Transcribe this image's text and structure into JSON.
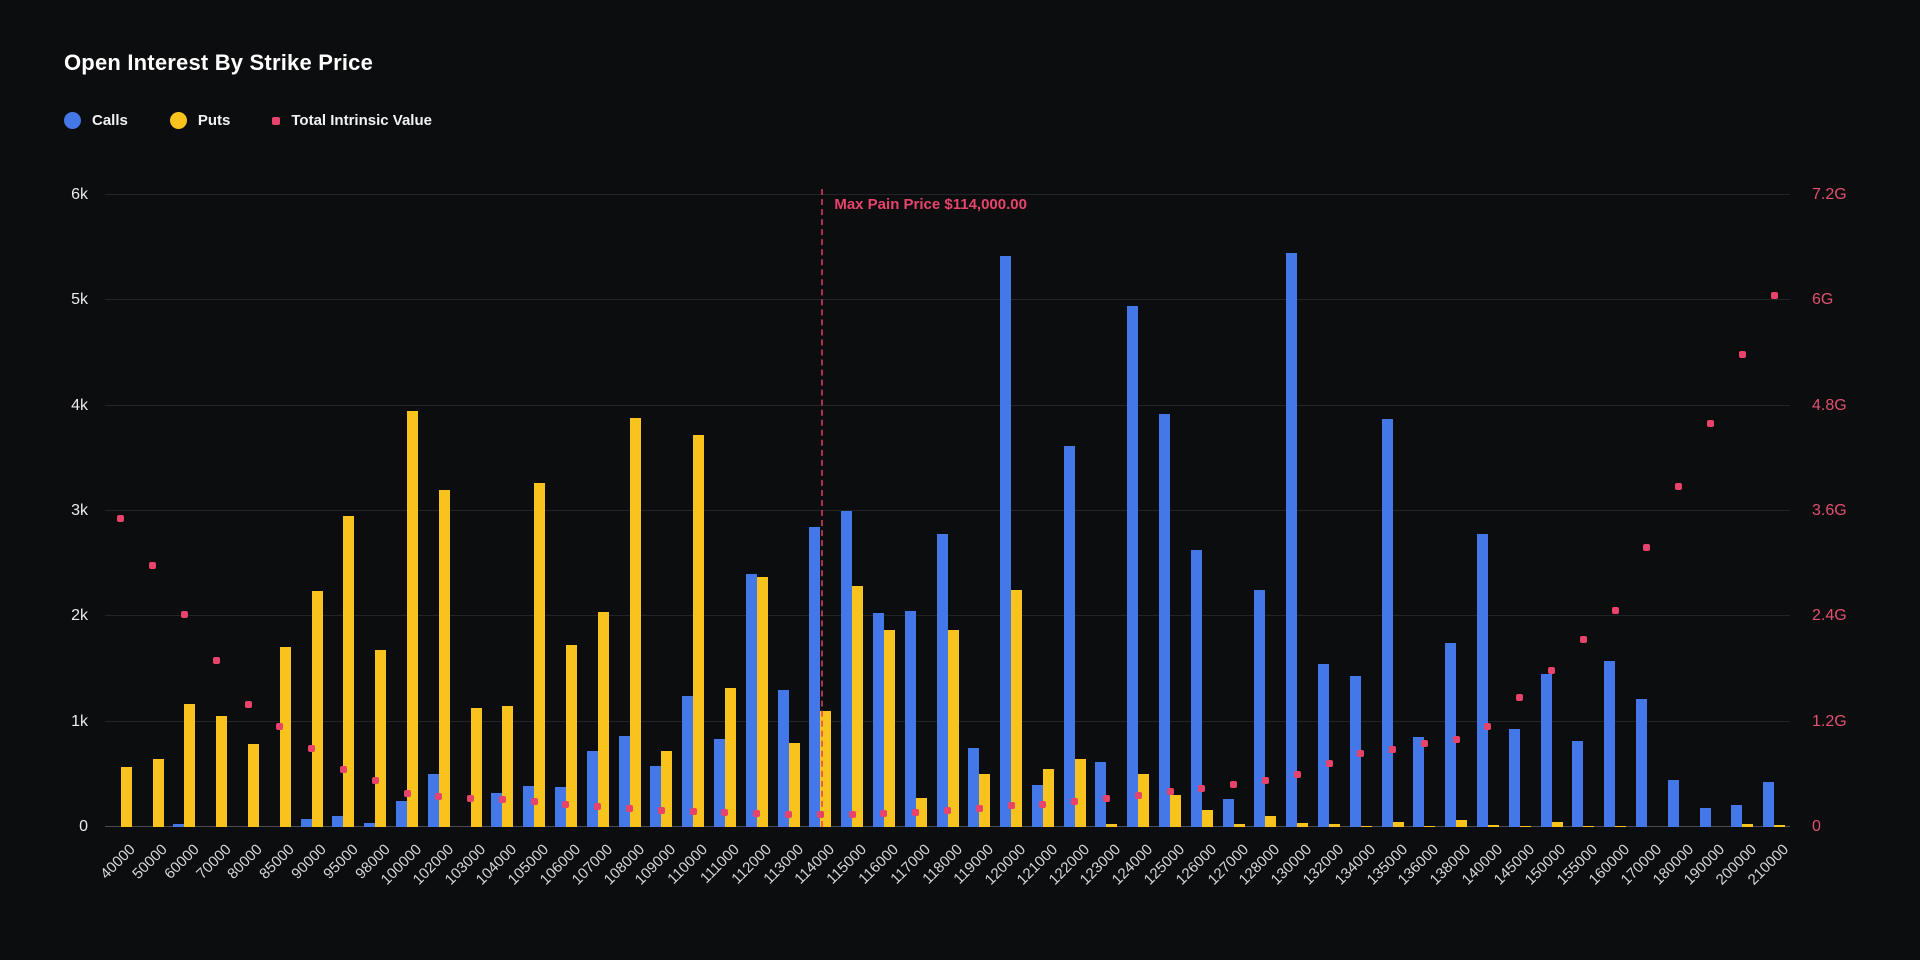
{
  "title": "Open Interest By Strike Price",
  "legend": [
    {
      "label": "Calls",
      "color": "#4478e8",
      "shape": "circle"
    },
    {
      "label": "Puts",
      "color": "#f8c31c",
      "shape": "circle"
    },
    {
      "label": "Total Intrinsic Value",
      "color": "#e8436b",
      "shape": "square"
    }
  ],
  "max_pain": {
    "label": "Max Pain Price $114,000.00",
    "strike": "114000"
  },
  "colors": {
    "background": "#0c0d0f",
    "calls": "#4478e8",
    "puts": "#f8c31c",
    "intrinsic": "#e8436b",
    "grid": "#232428",
    "zero_line": "#4a4c52",
    "left_axis_text": "#ececec",
    "right_axis_text": "#e0506f",
    "x_axis_text": "#d8d8d8"
  },
  "chart_data": {
    "type": "bar",
    "title": "Open Interest By Strike Price",
    "grid": true,
    "legend_position": "top-left",
    "categories": [
      "40000",
      "50000",
      "60000",
      "70000",
      "80000",
      "85000",
      "90000",
      "95000",
      "98000",
      "100000",
      "102000",
      "103000",
      "104000",
      "105000",
      "106000",
      "107000",
      "108000",
      "109000",
      "110000",
      "111000",
      "112000",
      "113000",
      "114000",
      "115000",
      "116000",
      "117000",
      "118000",
      "119000",
      "120000",
      "121000",
      "122000",
      "123000",
      "124000",
      "125000",
      "126000",
      "127000",
      "128000",
      "130000",
      "132000",
      "134000",
      "135000",
      "136000",
      "138000",
      "140000",
      "145000",
      "150000",
      "155000",
      "160000",
      "170000",
      "180000",
      "190000",
      "200000",
      "210000"
    ],
    "left_axis": {
      "ticks": [
        "0",
        "1k",
        "2k",
        "3k",
        "4k",
        "5k",
        "6k"
      ],
      "min": 0,
      "max": 6000
    },
    "right_axis": {
      "ticks": [
        "0",
        "1.2G",
        "2.4G",
        "3.6G",
        "4.8G",
        "6G",
        "7.2G"
      ],
      "min": 0,
      "max": 7.2
    },
    "series": [
      {
        "name": "Calls",
        "type": "bar",
        "axis": "left",
        "color": "#4478e8",
        "values": [
          0,
          0,
          30,
          0,
          0,
          0,
          80,
          100,
          40,
          250,
          500,
          0,
          320,
          390,
          380,
          720,
          860,
          580,
          1240,
          840,
          2400,
          1300,
          2850,
          3000,
          2030,
          2050,
          2780,
          750,
          5420,
          400,
          3620,
          620,
          4950,
          3920,
          2630,
          270,
          2250,
          5450,
          1550,
          1430,
          3870,
          850,
          1750,
          2780,
          930,
          1450,
          820,
          1580,
          1220,
          450,
          180,
          210,
          430
        ]
      },
      {
        "name": "Puts",
        "type": "bar",
        "axis": "left",
        "color": "#f8c31c",
        "values": [
          570,
          650,
          1170,
          1050,
          790,
          1710,
          2240,
          2950,
          1680,
          3950,
          3200,
          1130,
          1150,
          3270,
          1730,
          2040,
          3880,
          720,
          3720,
          1320,
          2370,
          800,
          1100,
          2290,
          1870,
          280,
          1870,
          500,
          2250,
          550,
          650,
          30,
          500,
          300,
          160,
          30,
          100,
          40,
          30,
          10,
          50,
          10,
          70,
          20,
          10,
          50,
          10,
          10,
          0,
          0,
          0,
          30,
          20
        ]
      },
      {
        "name": "Total Intrinsic Value",
        "type": "scatter",
        "axis": "right",
        "color": "#e8436b",
        "unit": "G",
        "values": [
          3.52,
          2.98,
          2.42,
          1.9,
          1.4,
          1.14,
          0.9,
          0.66,
          0.53,
          0.38,
          0.35,
          0.33,
          0.31,
          0.29,
          0.26,
          0.23,
          0.21,
          0.19,
          0.18,
          0.16,
          0.15,
          0.145,
          0.14,
          0.145,
          0.155,
          0.17,
          0.19,
          0.21,
          0.24,
          0.26,
          0.29,
          0.32,
          0.36,
          0.4,
          0.44,
          0.48,
          0.53,
          0.6,
          0.72,
          0.84,
          0.88,
          0.95,
          1.0,
          1.14,
          1.47,
          1.78,
          2.14,
          2.47,
          3.18,
          3.88,
          4.6,
          5.38,
          6.05
        ]
      }
    ],
    "annotations": [
      {
        "type": "vertical-dashed-line",
        "x_category": "114000",
        "label": "Max Pain Price $114,000.00",
        "color": "#e8436b"
      }
    ]
  }
}
